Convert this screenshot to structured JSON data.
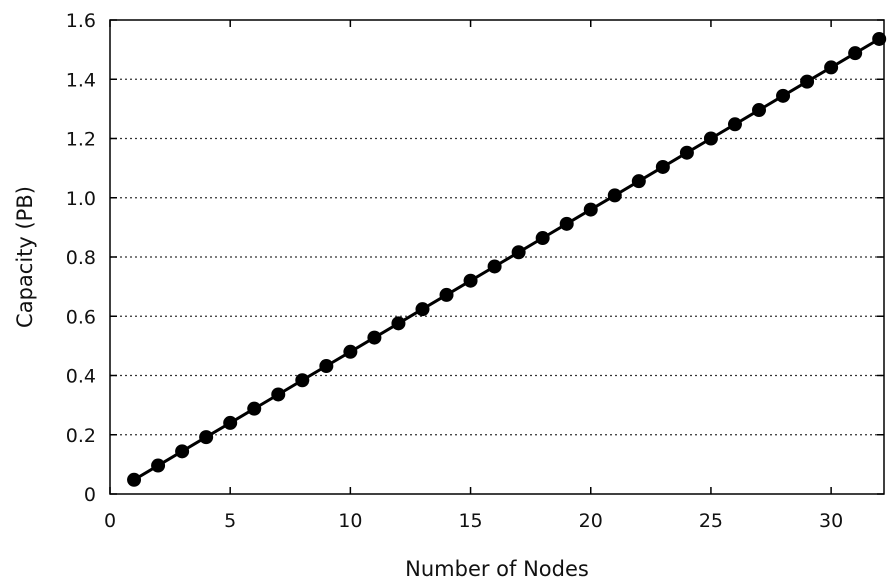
{
  "chart_data": {
    "type": "line",
    "title": "",
    "xlabel": "Number of Nodes",
    "ylabel": "Capacity (PB)",
    "xlim": [
      0,
      32.2
    ],
    "ylim": [
      0,
      1.6
    ],
    "x_ticks": [
      0,
      5,
      10,
      15,
      20,
      25,
      30
    ],
    "x_tick_labels": [
      "0",
      "5",
      "10",
      "15",
      "20",
      "25",
      "30"
    ],
    "y_ticks": [
      0,
      0.2,
      0.4,
      0.6,
      0.8,
      1.0,
      1.2,
      1.4,
      1.6
    ],
    "y_tick_labels": [
      "0",
      "0.2",
      "0.4",
      "0.6",
      "0.8",
      "1.0",
      "1.2",
      "1.4",
      "1.6"
    ],
    "grid": "horizontal dotted",
    "legend": "none",
    "colors": {
      "series": "#000000",
      "grid": "#333333",
      "axis": "#000000"
    },
    "series": [
      {
        "x": [
          1,
          2,
          3,
          4,
          5,
          6,
          7,
          8,
          9,
          10,
          11,
          12,
          13,
          14,
          15,
          16,
          17,
          18,
          19,
          20,
          21,
          22,
          23,
          24,
          25,
          26,
          27,
          28,
          29,
          30,
          31,
          32
        ],
        "values": [
          0.048,
          0.096,
          0.144,
          0.192,
          0.24,
          0.288,
          0.336,
          0.384,
          0.432,
          0.48,
          0.528,
          0.576,
          0.624,
          0.672,
          0.72,
          0.768,
          0.816,
          0.864,
          0.912,
          0.96,
          1.008,
          1.056,
          1.104,
          1.152,
          1.2,
          1.248,
          1.296,
          1.344,
          1.392,
          1.44,
          1.488,
          1.536
        ]
      }
    ]
  }
}
